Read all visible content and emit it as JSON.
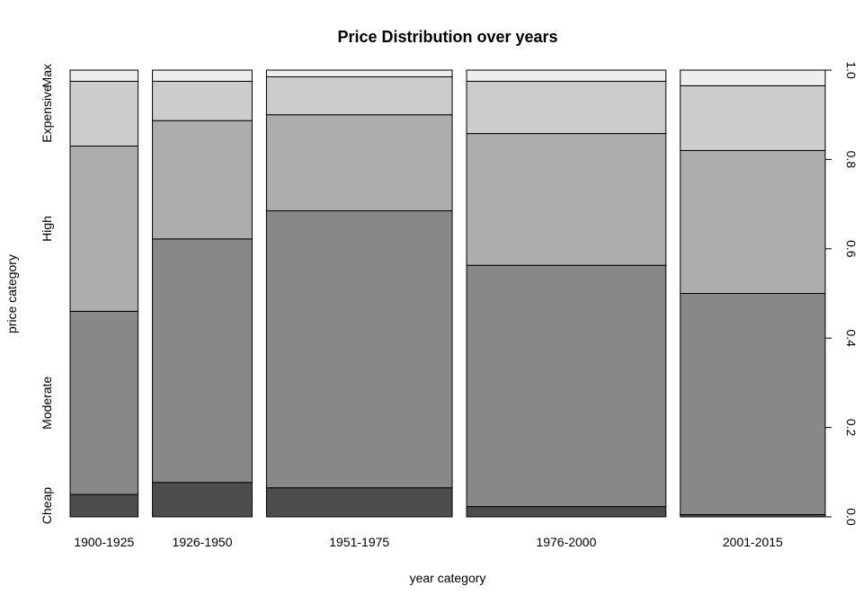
{
  "chart_data": {
    "type": "bar",
    "subtype": "spineplot",
    "title": "Price Distribution over years",
    "xlabel": "year category",
    "ylabel": "price category",
    "categories": [
      "1900-1925",
      "1926-1950",
      "1951-1975",
      "1976-2000",
      "2001-2015"
    ],
    "category_widths": [
      0.15,
      0.22,
      0.41,
      0.44,
      0.32
    ],
    "series": [
      {
        "name": "Cheap",
        "values": [
          0.05,
          0.077,
          0.065,
          0.023,
          0.005
        ],
        "color": "#4d4d4d"
      },
      {
        "name": "Moderate",
        "values": [
          0.41,
          0.545,
          0.62,
          0.54,
          0.495
        ],
        "color": "#888888"
      },
      {
        "name": "High",
        "values": [
          0.37,
          0.265,
          0.215,
          0.295,
          0.32
        ],
        "color": "#adadad"
      },
      {
        "name": "Expensive",
        "values": [
          0.145,
          0.088,
          0.085,
          0.117,
          0.145
        ],
        "color": "#cccccc"
      },
      {
        "name": "Max",
        "values": [
          0.025,
          0.025,
          0.015,
          0.025,
          0.035
        ],
        "color": "#eeeeee"
      }
    ],
    "y_right_ticks": [
      "0.0",
      "0.2",
      "0.4",
      "0.6",
      "0.8",
      "1.0"
    ],
    "ylim": [
      0,
      1
    ],
    "grid": false,
    "legend": "none"
  }
}
